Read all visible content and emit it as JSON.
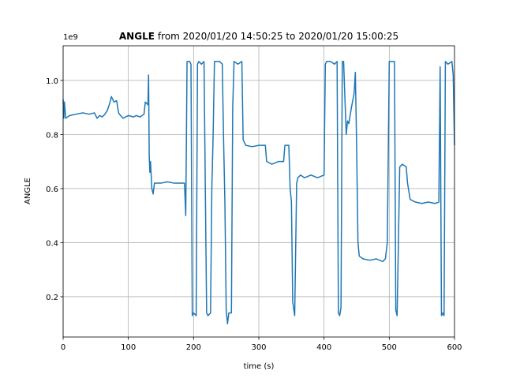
{
  "chart_data": {
    "type": "line",
    "title": [
      "ANGLE",
      "from 2020/01/20 14:50:25 to 2020/01/20 15:00:25"
    ],
    "x_label": "time (s)",
    "y_label": "ANGLE",
    "y_offset_label": "1e9",
    "x": [
      0,
      1,
      2,
      4,
      10,
      20,
      30,
      40,
      48,
      52,
      56,
      60,
      64,
      68,
      72,
      74,
      78,
      82,
      85,
      88,
      92,
      100,
      108,
      112,
      118,
      124,
      126,
      130,
      131,
      132,
      133,
      134,
      136,
      138,
      140,
      150,
      160,
      170,
      180,
      186,
      188,
      190,
      194,
      196,
      198,
      200,
      204,
      206,
      208,
      212,
      216,
      218,
      220,
      222,
      226,
      228,
      230,
      232,
      236,
      240,
      244,
      246,
      248,
      250,
      252,
      254,
      258,
      260,
      262,
      268,
      274,
      276,
      280,
      290,
      300,
      310,
      312,
      320,
      330,
      338,
      340,
      346,
      348,
      350,
      352,
      355,
      358,
      360,
      364,
      370,
      380,
      390,
      400,
      402,
      404,
      410,
      416,
      420,
      422,
      424,
      426,
      428,
      430,
      434,
      436,
      438,
      442,
      446,
      448,
      450,
      452,
      454,
      460,
      470,
      480,
      490,
      494,
      497,
      500,
      504,
      508,
      510,
      512,
      514,
      516,
      520,
      526,
      528,
      532,
      540,
      550,
      560,
      570,
      576,
      578,
      580,
      582,
      584,
      586,
      590,
      596,
      598,
      600
    ],
    "series": [
      {
        "color": "#1f77b4",
        "values": [
          0.93,
          0.86,
          0.92,
          0.86,
          0.87,
          0.875,
          0.88,
          0.875,
          0.88,
          0.86,
          0.87,
          0.865,
          0.875,
          0.89,
          0.92,
          0.94,
          0.92,
          0.925,
          0.88,
          0.87,
          0.86,
          0.87,
          0.865,
          0.87,
          0.865,
          0.875,
          0.92,
          0.91,
          1.02,
          0.72,
          0.66,
          0.7,
          0.6,
          0.58,
          0.62,
          0.62,
          0.625,
          0.62,
          0.62,
          0.62,
          0.5,
          1.07,
          1.07,
          1.06,
          0.13,
          0.14,
          0.13,
          1.06,
          1.07,
          1.06,
          1.07,
          0.6,
          0.14,
          0.13,
          0.14,
          0.6,
          0.8,
          1.07,
          1.07,
          1.07,
          1.06,
          0.78,
          0.55,
          0.15,
          0.1,
          0.14,
          0.14,
          0.9,
          1.07,
          1.06,
          1.07,
          0.78,
          0.76,
          0.755,
          0.76,
          0.76,
          0.7,
          0.69,
          0.7,
          0.7,
          0.76,
          0.76,
          0.6,
          0.55,
          0.18,
          0.13,
          0.62,
          0.64,
          0.65,
          0.64,
          0.65,
          0.64,
          0.65,
          1.06,
          1.07,
          1.07,
          1.06,
          1.07,
          0.14,
          0.13,
          0.16,
          1.07,
          1.07,
          0.8,
          0.85,
          0.84,
          0.9,
          0.95,
          1.03,
          0.75,
          0.4,
          0.35,
          0.34,
          0.335,
          0.34,
          0.33,
          0.34,
          0.4,
          1.07,
          1.07,
          1.07,
          0.15,
          0.13,
          0.4,
          0.68,
          0.69,
          0.68,
          0.62,
          0.56,
          0.55,
          0.545,
          0.55,
          0.545,
          0.55,
          1.05,
          0.13,
          0.14,
          0.13,
          1.07,
          1.06,
          1.07,
          1.02,
          0.76
        ]
      }
    ],
    "xlim": [
      0,
      600
    ],
    "xticks": [
      0,
      100,
      200,
      300,
      400,
      500,
      600
    ],
    "ylim": [
      0.051,
      1.128
    ],
    "yticks": [
      0.2,
      0.4,
      0.6,
      0.8,
      {
        "value": 1.0,
        "label": "1.0"
      }
    ],
    "grid": true
  }
}
